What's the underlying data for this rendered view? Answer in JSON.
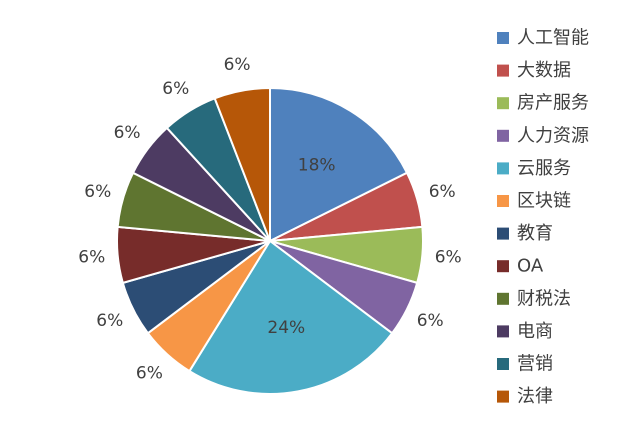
{
  "chart_data": {
    "type": "pie",
    "title": "",
    "categories": [
      "人工智能",
      "大数据",
      "房产服务",
      "人力资源",
      "云服务",
      "区块链",
      "教育",
      "OA",
      "财税法",
      "电商",
      "营销",
      "法律"
    ],
    "values": [
      18,
      6,
      6,
      6,
      24,
      6,
      6,
      6,
      6,
      6,
      6,
      6
    ],
    "labels": [
      "18%",
      "6%",
      "6%",
      "6%",
      "24%",
      "6%",
      "6%",
      "6%",
      "6%",
      "6%",
      "6%",
      "6%"
    ],
    "colors": [
      "#4F81BD",
      "#C0504D",
      "#9BBB59",
      "#8064A2",
      "#4BACC6",
      "#F79646",
      "#2C4D75",
      "#772C2A",
      "#5F7530",
      "#4D3B62",
      "#276A7C",
      "#B65708"
    ],
    "legend_position": "right"
  }
}
